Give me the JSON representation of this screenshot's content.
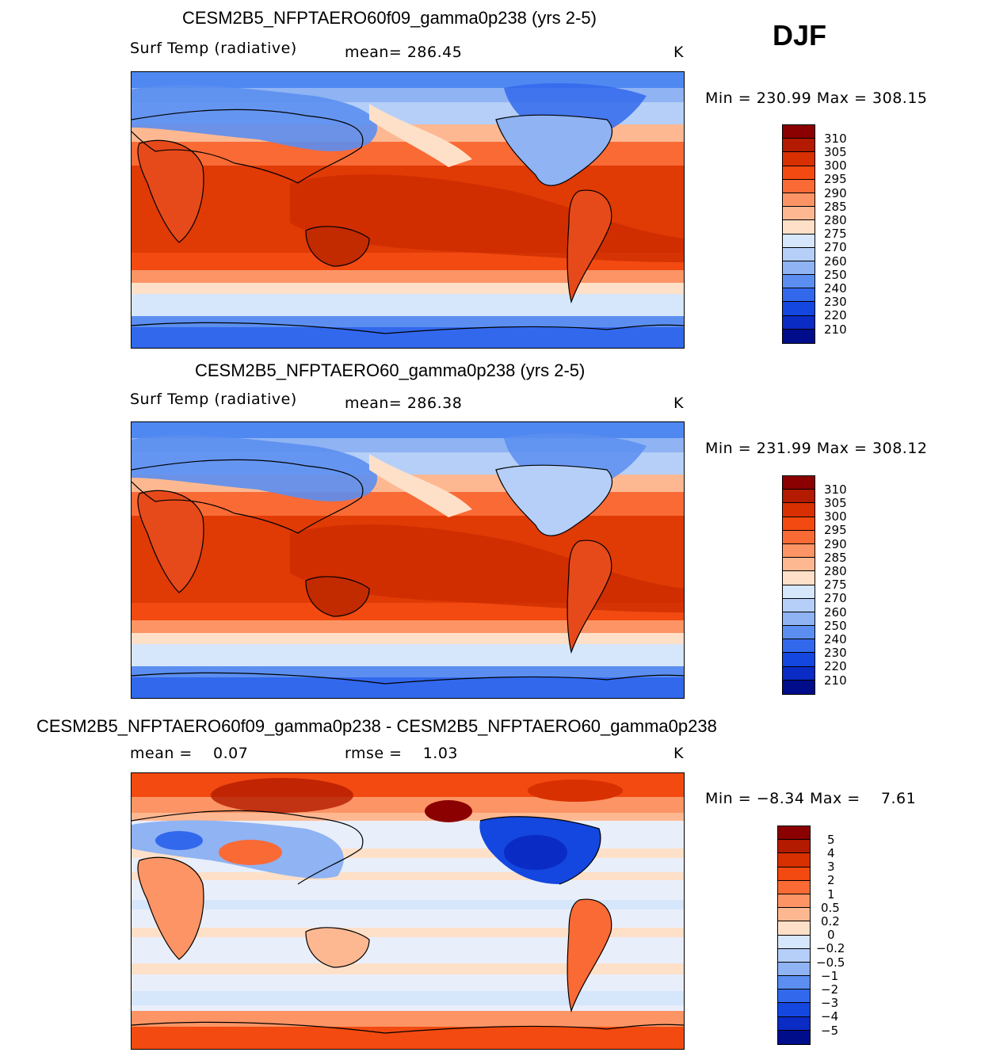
{
  "season": "DJF",
  "panels": [
    {
      "title": "CESM2B5_NFPTAERO60f09_gamma0p238 (yrs 2-5)",
      "left_label": "Surf Temp (radiative)",
      "center_label": "mean= 286.45",
      "units": "K",
      "minmax": "Min = 230.99 Max = 308.15",
      "levels": [
        "310",
        "305",
        "300",
        "295",
        "290",
        "285",
        "280",
        "275",
        "270",
        "260",
        "250",
        "240",
        "230",
        "220",
        "210"
      ],
      "colors": [
        "#8b0000",
        "#b31a00",
        "#d83000",
        "#f24a10",
        "#fa6a35",
        "#fc9465",
        "#fdb892",
        "#fee0c8",
        "#d6e6fb",
        "#b5cff8",
        "#8fb3f3",
        "#5b8ef0",
        "#3268ec",
        "#1447e0",
        "#0a2bc4",
        "#000d8a"
      ]
    },
    {
      "title": "CESM2B5_NFPTAERO60_gamma0p238 (yrs 2-5)",
      "left_label": "Surf Temp (radiative)",
      "center_label": "mean= 286.38",
      "units": "K",
      "minmax": "Min = 231.99 Max = 308.12",
      "levels": [
        "310",
        "305",
        "300",
        "295",
        "290",
        "285",
        "280",
        "275",
        "270",
        "260",
        "250",
        "240",
        "230",
        "220",
        "210"
      ],
      "colors": [
        "#8b0000",
        "#b31a00",
        "#d83000",
        "#f24a10",
        "#fa6a35",
        "#fc9465",
        "#fdb892",
        "#fee0c8",
        "#d6e6fb",
        "#b5cff8",
        "#8fb3f3",
        "#5b8ef0",
        "#3268ec",
        "#1447e0",
        "#0a2bc4",
        "#000d8a"
      ]
    },
    {
      "title": "CESM2B5_NFPTAERO60f09_gamma0p238 - CESM2B5_NFPTAERO60_gamma0p238",
      "left_label": "mean =    0.07",
      "center_label": "rmse =    1.03",
      "units": "K",
      "minmax": "Min = −8.34 Max =    7.61",
      "levels": [
        "5",
        "4",
        "3",
        "2",
        "1",
        "0.5",
        "0.2",
        "0",
        "−0.2",
        "−0.5",
        "−1",
        "−2",
        "−3",
        "−4",
        "−5"
      ],
      "colors": [
        "#8b0000",
        "#b31a00",
        "#d83000",
        "#f24a10",
        "#fa6a35",
        "#fc9465",
        "#fdb892",
        "#fee0c8",
        "#d6e6fb",
        "#b5cff8",
        "#8fb3f3",
        "#5b8ef0",
        "#3268ec",
        "#1447e0",
        "#0a2bc4",
        "#000d8a"
      ]
    }
  ],
  "chart_data": [
    {
      "type": "heatmap",
      "title": "CESM2B5_NFPTAERO60f09_gamma0p238 (yrs 2-5)",
      "variable": "Surf Temp (radiative)",
      "units": "K",
      "mean": 286.45,
      "min": 230.99,
      "max": 308.15,
      "contour_levels": [
        210,
        220,
        230,
        240,
        250,
        260,
        270,
        275,
        280,
        285,
        290,
        295,
        300,
        305,
        310
      ]
    },
    {
      "type": "heatmap",
      "title": "CESM2B5_NFPTAERO60_gamma0p238 (yrs 2-5)",
      "variable": "Surf Temp (radiative)",
      "units": "K",
      "mean": 286.38,
      "min": 231.99,
      "max": 308.12,
      "contour_levels": [
        210,
        220,
        230,
        240,
        250,
        260,
        270,
        275,
        280,
        285,
        290,
        295,
        300,
        305,
        310
      ]
    },
    {
      "type": "heatmap",
      "title": "CESM2B5_NFPTAERO60f09_gamma0p238 - CESM2B5_NFPTAERO60_gamma0p238",
      "units": "K",
      "mean": 0.07,
      "rmse": 1.03,
      "min": -8.34,
      "max": 7.61,
      "contour_levels": [
        -5,
        -4,
        -3,
        -2,
        -1,
        -0.5,
        -0.2,
        0,
        0.2,
        0.5,
        1,
        2,
        3,
        4,
        5
      ]
    }
  ]
}
